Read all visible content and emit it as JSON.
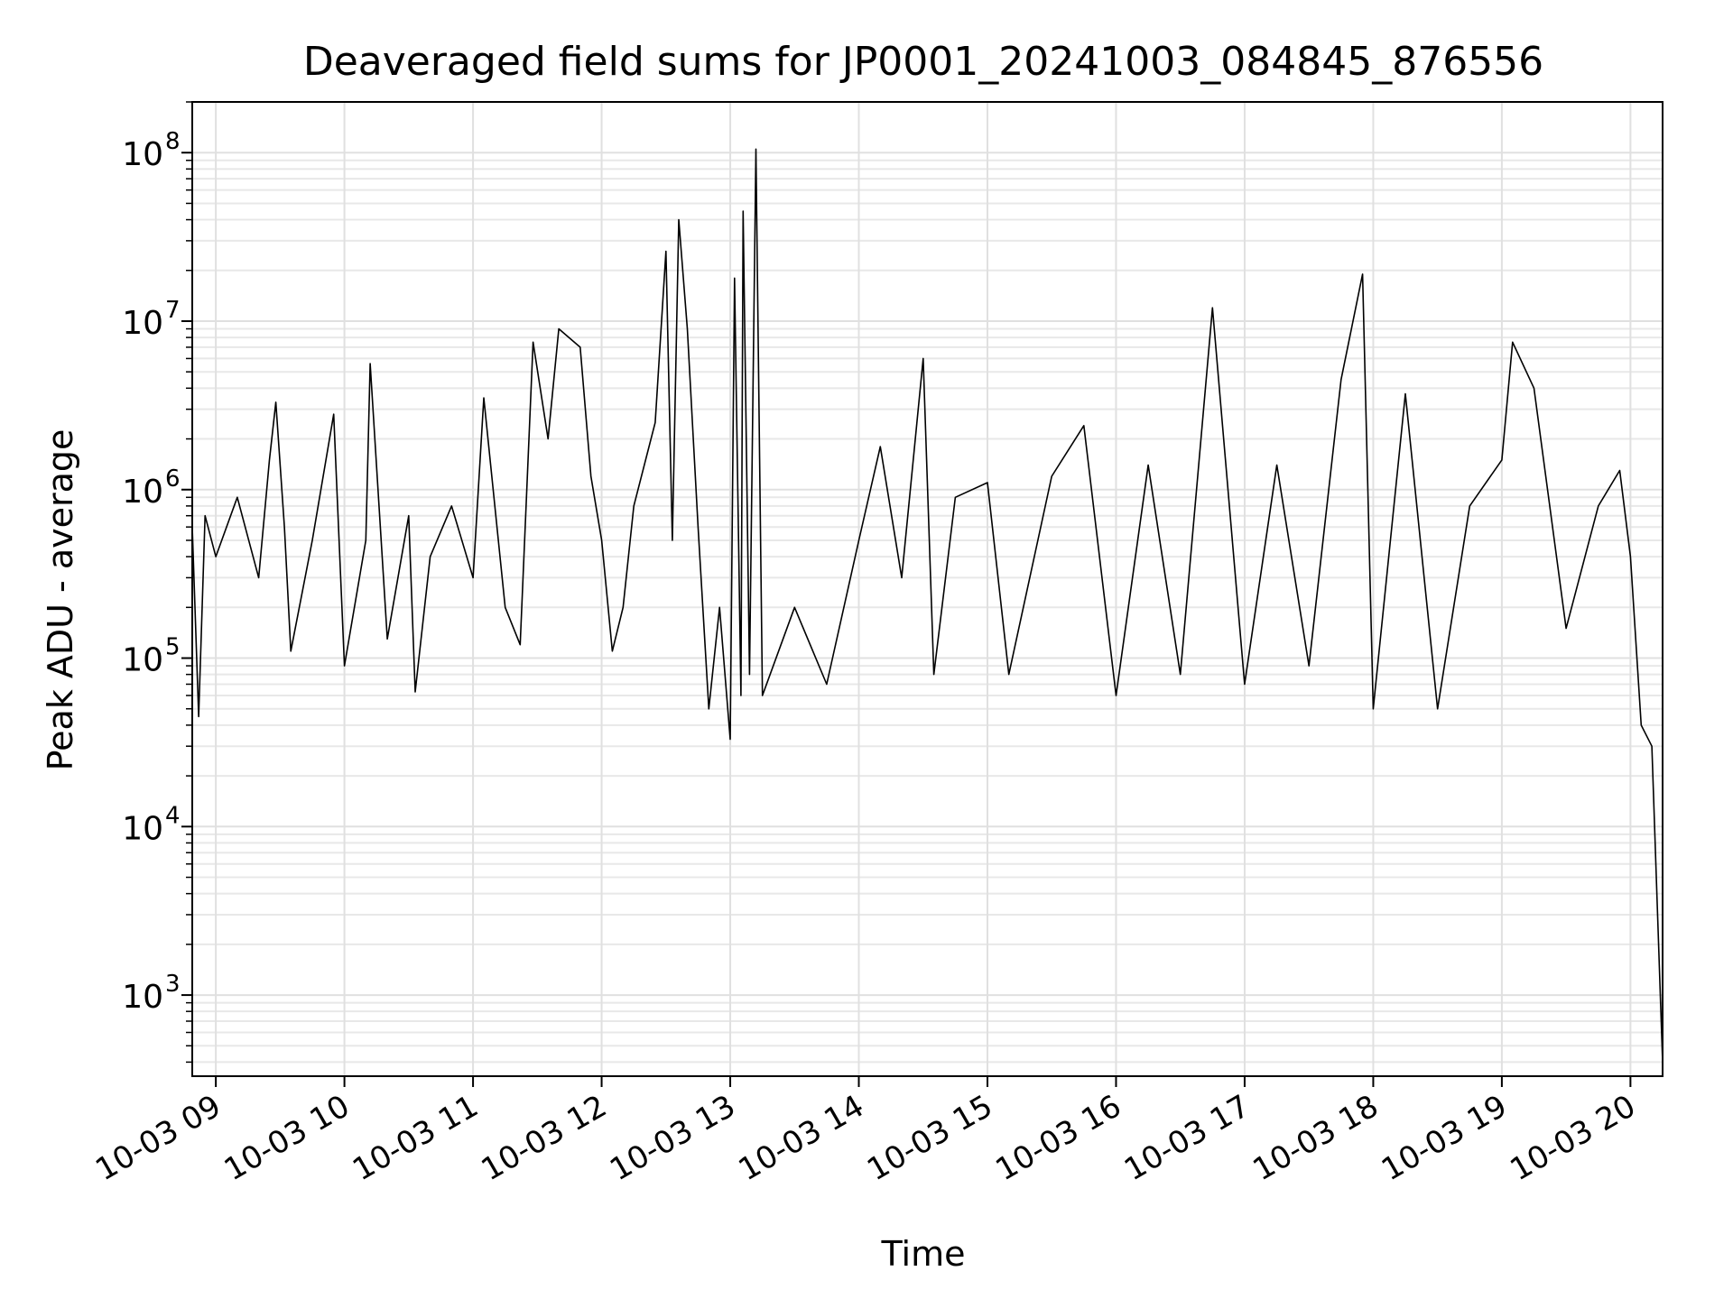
{
  "chart_data": {
    "type": "line",
    "title": "Deaveraged field sums for JP0001_20241003_084845_876556",
    "xlabel": "Time",
    "ylabel": "Peak ADU - average",
    "x_scale": "time",
    "y_scale": "log",
    "xlim": [
      "2024-10-03T08:49",
      "2024-10-03T20:15"
    ],
    "ylim": [
      330,
      200000000
    ],
    "grid": true,
    "line_color": "#000000",
    "x_ticks": [
      {
        "value": "2024-10-03T09:00",
        "label": "10-03 09"
      },
      {
        "value": "2024-10-03T10:00",
        "label": "10-03 10"
      },
      {
        "value": "2024-10-03T11:00",
        "label": "10-03 11"
      },
      {
        "value": "2024-10-03T12:00",
        "label": "10-03 12"
      },
      {
        "value": "2024-10-03T13:00",
        "label": "10-03 13"
      },
      {
        "value": "2024-10-03T14:00",
        "label": "10-03 14"
      },
      {
        "value": "2024-10-03T15:00",
        "label": "10-03 15"
      },
      {
        "value": "2024-10-03T16:00",
        "label": "10-03 16"
      },
      {
        "value": "2024-10-03T17:00",
        "label": "10-03 17"
      },
      {
        "value": "2024-10-03T18:00",
        "label": "10-03 18"
      },
      {
        "value": "2024-10-03T19:00",
        "label": "10-03 19"
      },
      {
        "value": "2024-10-03T20:00",
        "label": "10-03 20"
      }
    ],
    "y_ticks": [
      {
        "value": 1000,
        "base": "10",
        "exp": "3"
      },
      {
        "value": 10000,
        "base": "10",
        "exp": "4"
      },
      {
        "value": 100000,
        "base": "10",
        "exp": "5"
      },
      {
        "value": 1000000,
        "base": "10",
        "exp": "6"
      },
      {
        "value": 10000000,
        "base": "10",
        "exp": "7"
      },
      {
        "value": 100000000,
        "base": "10",
        "exp": "8"
      }
    ],
    "series": [
      {
        "points": [
          [
            "2024-10-03T08:49",
            600000
          ],
          [
            "2024-10-03T08:52",
            45000
          ],
          [
            "2024-10-03T08:55",
            700000
          ],
          [
            "2024-10-03T09:00",
            400000
          ],
          [
            "2024-10-03T09:10",
            900000
          ],
          [
            "2024-10-03T09:20",
            300000
          ],
          [
            "2024-10-03T09:25",
            1500000
          ],
          [
            "2024-10-03T09:28",
            3300000
          ],
          [
            "2024-10-03T09:32",
            600000
          ],
          [
            "2024-10-03T09:35",
            110000
          ],
          [
            "2024-10-03T09:45",
            500000
          ],
          [
            "2024-10-03T09:55",
            2800000
          ],
          [
            "2024-10-03T10:00",
            90000
          ],
          [
            "2024-10-03T10:10",
            500000
          ],
          [
            "2024-10-03T10:12",
            5600000
          ],
          [
            "2024-10-03T10:20",
            130000
          ],
          [
            "2024-10-03T10:30",
            700000
          ],
          [
            "2024-10-03T10:33",
            63000
          ],
          [
            "2024-10-03T10:40",
            400000
          ],
          [
            "2024-10-03T10:50",
            800000
          ],
          [
            "2024-10-03T11:00",
            300000
          ],
          [
            "2024-10-03T11:05",
            3500000
          ],
          [
            "2024-10-03T11:15",
            200000
          ],
          [
            "2024-10-03T11:22",
            120000
          ],
          [
            "2024-10-03T11:28",
            7500000
          ],
          [
            "2024-10-03T11:35",
            2000000
          ],
          [
            "2024-10-03T11:40",
            9000000
          ],
          [
            "2024-10-03T11:50",
            7000000
          ],
          [
            "2024-10-03T11:55",
            1200000
          ],
          [
            "2024-10-03T12:00",
            500000
          ],
          [
            "2024-10-03T12:05",
            110000
          ],
          [
            "2024-10-03T12:10",
            200000
          ],
          [
            "2024-10-03T12:15",
            800000
          ],
          [
            "2024-10-03T12:25",
            2500000
          ],
          [
            "2024-10-03T12:30",
            26000000
          ],
          [
            "2024-10-03T12:33",
            500000
          ],
          [
            "2024-10-03T12:36",
            40000000
          ],
          [
            "2024-10-03T12:40",
            9000000
          ],
          [
            "2024-10-03T12:45",
            600000
          ],
          [
            "2024-10-03T12:50",
            50000
          ],
          [
            "2024-10-03T12:55",
            200000
          ],
          [
            "2024-10-03T13:00",
            33000
          ],
          [
            "2024-10-03T13:02",
            18000000
          ],
          [
            "2024-10-03T13:05",
            60000
          ],
          [
            "2024-10-03T13:06",
            45000000
          ],
          [
            "2024-10-03T13:09",
            80000
          ],
          [
            "2024-10-03T13:12",
            105000000
          ],
          [
            "2024-10-03T13:15",
            60000
          ],
          [
            "2024-10-03T13:30",
            200000
          ],
          [
            "2024-10-03T13:45",
            70000
          ],
          [
            "2024-10-03T14:00",
            500000
          ],
          [
            "2024-10-03T14:10",
            1800000
          ],
          [
            "2024-10-03T14:20",
            300000
          ],
          [
            "2024-10-03T14:30",
            6000000
          ],
          [
            "2024-10-03T14:35",
            80000
          ],
          [
            "2024-10-03T14:45",
            900000
          ],
          [
            "2024-10-03T15:00",
            1100000
          ],
          [
            "2024-10-03T15:10",
            80000
          ],
          [
            "2024-10-03T15:30",
            1200000
          ],
          [
            "2024-10-03T15:45",
            2400000
          ],
          [
            "2024-10-03T16:00",
            60000
          ],
          [
            "2024-10-03T16:15",
            1400000
          ],
          [
            "2024-10-03T16:30",
            80000
          ],
          [
            "2024-10-03T16:45",
            12000000
          ],
          [
            "2024-10-03T17:00",
            70000
          ],
          [
            "2024-10-03T17:15",
            1400000
          ],
          [
            "2024-10-03T17:30",
            90000
          ],
          [
            "2024-10-03T17:45",
            4500000
          ],
          [
            "2024-10-03T17:55",
            19000000
          ],
          [
            "2024-10-03T18:00",
            50000
          ],
          [
            "2024-10-03T18:15",
            3700000
          ],
          [
            "2024-10-03T18:30",
            50000
          ],
          [
            "2024-10-03T18:45",
            800000
          ],
          [
            "2024-10-03T19:00",
            1500000
          ],
          [
            "2024-10-03T19:05",
            7500000
          ],
          [
            "2024-10-03T19:15",
            4000000
          ],
          [
            "2024-10-03T19:30",
            150000
          ],
          [
            "2024-10-03T19:45",
            800000
          ],
          [
            "2024-10-03T19:55",
            1300000
          ],
          [
            "2024-10-03T20:00",
            400000
          ],
          [
            "2024-10-03T20:05",
            40000
          ],
          [
            "2024-10-03T20:10",
            30000
          ],
          [
            "2024-10-03T20:15",
            400
          ]
        ]
      }
    ]
  }
}
